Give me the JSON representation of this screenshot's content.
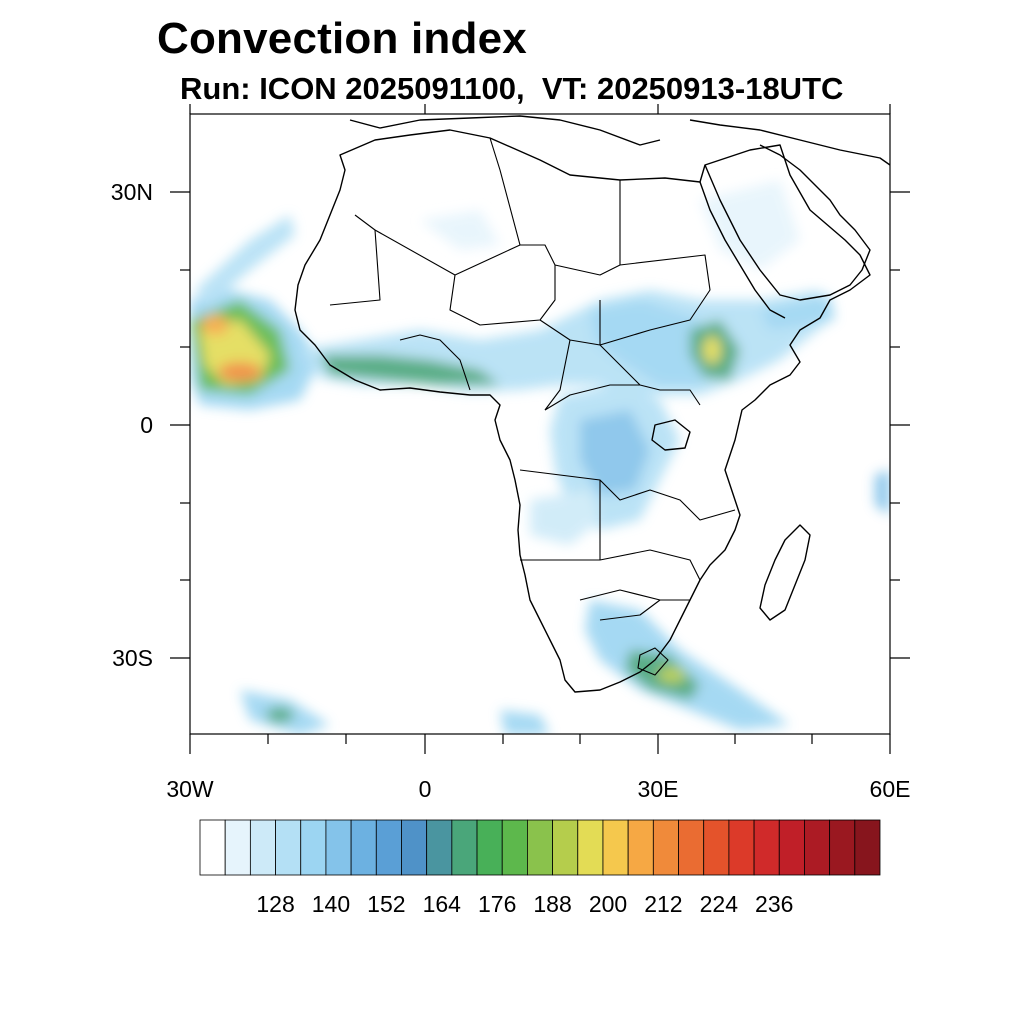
{
  "title": "Convection index",
  "subtitle": "Run: ICON 2025091100,  VT: 20250913-18UTC",
  "axes": {
    "x_ticks": [
      "30W",
      "0",
      "30E",
      "60E"
    ],
    "y_ticks": [
      "30N",
      "0",
      "30S"
    ],
    "lon_range": [
      -30,
      60
    ],
    "lat_range": [
      -40,
      40
    ]
  },
  "colorbar": {
    "labels": [
      "128",
      "140",
      "152",
      "164",
      "176",
      "188",
      "200",
      "212",
      "224",
      "236"
    ],
    "colors": [
      "#ffffff",
      "#e6f4fc",
      "#cdeaf8",
      "#b4e0f5",
      "#9cd5f2",
      "#84c3ea",
      "#6cb1e1",
      "#5a9fd6",
      "#4f92c8",
      "#4a95a0",
      "#4aa67a",
      "#48b058",
      "#5db84c",
      "#8ac24c",
      "#b5cd4c",
      "#e3dc55",
      "#f5c84d",
      "#f6a844",
      "#f08a3a",
      "#ea6c32",
      "#e4532b",
      "#dc3a29",
      "#d02a2a",
      "#c01f28",
      "#ac1b24",
      "#9a1820",
      "#87151d"
    ]
  },
  "map_features": {
    "coastlines": "Africa, Arabian Peninsula, Madagascar, southern Europe",
    "high_index_regions": [
      "West African monsoon / Atlantic cyclone",
      "Ethiopian Highlands",
      "Congo Basin",
      "South-east Africa frontal band"
    ]
  }
}
